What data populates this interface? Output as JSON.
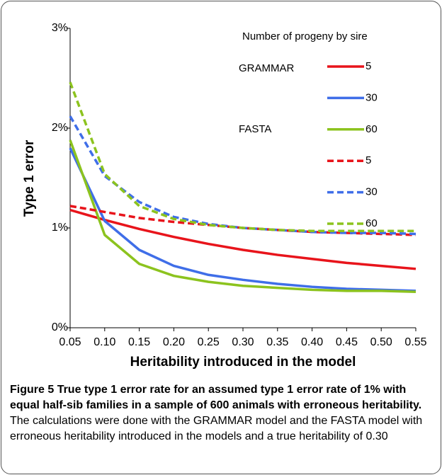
{
  "chart_data": {
    "type": "line",
    "x_label": "Heritability introduced in the model",
    "y_label": "Type 1 error",
    "x": [
      0.05,
      0.1,
      0.15,
      0.2,
      0.25,
      0.3,
      0.35,
      0.4,
      0.45,
      0.5,
      0.55
    ],
    "xlim": [
      0.05,
      0.55
    ],
    "xticks": [
      0.05,
      {
        "value": 0.1,
        "label": "0.10"
      },
      0.15,
      {
        "value": 0.2,
        "label": "0.20"
      },
      0.25,
      {
        "value": 0.3,
        "label": "0.30"
      },
      0.35,
      {
        "value": 0.4,
        "label": "0.40"
      },
      0.45,
      {
        "value": 0.5,
        "label": "0.50"
      },
      0.55
    ],
    "ylim": [
      0,
      3
    ],
    "yticks": [
      {
        "value": 0,
        "label": "0%"
      },
      {
        "value": 1,
        "label": "1%"
      },
      {
        "value": 2,
        "label": "2%"
      },
      {
        "value": 3,
        "label": "3%"
      }
    ],
    "grid": false,
    "legend_title": "Number of progeny by sire",
    "series": [
      {
        "name": "5",
        "group": "GRAMMAR",
        "color": "#e8141b",
        "dashed": false,
        "values": [
          1.18,
          1.08,
          0.99,
          0.91,
          0.84,
          0.78,
          0.73,
          0.69,
          0.65,
          0.62,
          0.59
        ]
      },
      {
        "name": "30",
        "group": "GRAMMAR",
        "color": "#3f6ee8",
        "dashed": false,
        "values": [
          1.8,
          1.07,
          0.78,
          0.62,
          0.53,
          0.48,
          0.44,
          0.41,
          0.39,
          0.38,
          0.37
        ]
      },
      {
        "name": "60",
        "group": "GRAMMAR",
        "color": "#8cc31e",
        "dashed": false,
        "values": [
          1.88,
          0.93,
          0.64,
          0.52,
          0.46,
          0.42,
          0.4,
          0.38,
          0.37,
          0.37,
          0.36
        ]
      },
      {
        "name": "5",
        "group": "FASTA",
        "color": "#e8141b",
        "dashed": true,
        "values": [
          1.22,
          1.16,
          1.1,
          1.06,
          1.03,
          1.0,
          0.98,
          0.96,
          0.95,
          0.94,
          0.93
        ]
      },
      {
        "name": "30",
        "group": "FASTA",
        "color": "#3f6ee8",
        "dashed": true,
        "values": [
          2.12,
          1.52,
          1.26,
          1.11,
          1.04,
          1.0,
          0.98,
          0.96,
          0.95,
          0.95,
          0.94
        ]
      },
      {
        "name": "60",
        "group": "FASTA",
        "color": "#8cc31e",
        "dashed": true,
        "values": [
          2.46,
          1.54,
          1.22,
          1.09,
          1.03,
          1.0,
          0.98,
          0.97,
          0.97,
          0.97,
          0.97
        ]
      }
    ]
  },
  "caption": {
    "label": "Figure 5",
    "title": "True type 1 error rate for an assumed type 1 error rate of 1% with equal half-sib families in a sample of 600 animals with erroneous heritability.",
    "text": "The calculations were done with the GRAMMAR model and the FASTA model with erroneous heritability introduced in the models and a true heritability of 0.30"
  }
}
